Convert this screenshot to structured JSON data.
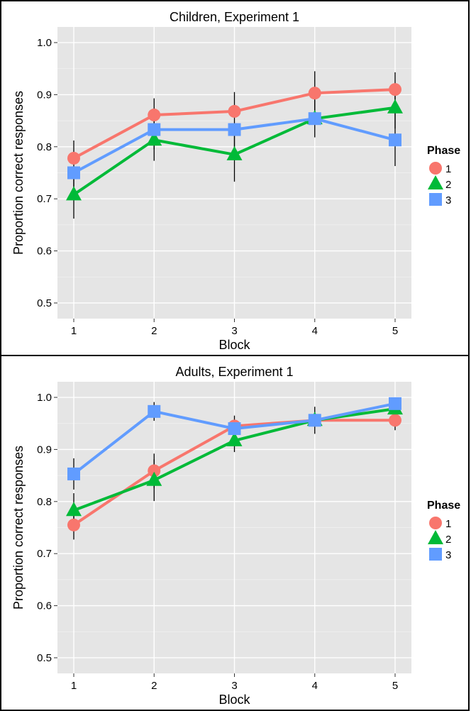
{
  "chart_data": [
    {
      "type": "line",
      "title": "Children, Experiment 1",
      "xlabel": "Block",
      "ylabel": "Proportion correct responses",
      "categories": [
        "1",
        "2",
        "3",
        "4",
        "5"
      ],
      "ylim": [
        0.47,
        1.03
      ],
      "yticks": [
        "0.5",
        "0.6",
        "0.7",
        "0.8",
        "0.9",
        "1.0"
      ],
      "grid": true,
      "legend_position": "right",
      "legend_title": "Phase",
      "series": [
        {
          "name": "1",
          "color": "#F8766D",
          "marker": "circle",
          "values": [
            0.778,
            0.861,
            0.868,
            0.903,
            0.91
          ],
          "err_lo": [
            null,
            null,
            null,
            0.861,
            null
          ],
          "err_hi": [
            null,
            null,
            null,
            0.945,
            null
          ]
        },
        {
          "name": "2",
          "color": "#00BA38",
          "marker": "triangle",
          "values": [
            0.708,
            0.813,
            0.785,
            0.854,
            0.875
          ],
          "err_lo": [
            0.662,
            0.773,
            0.733,
            0.818,
            0.835
          ],
          "err_hi": [
            0.754,
            0.853,
            0.837,
            0.89,
            0.915
          ]
        },
        {
          "name": "3",
          "color": "#619CFF",
          "marker": "square",
          "values": [
            0.75,
            0.833,
            0.833,
            0.854,
            0.813
          ],
          "err_lo": [
            0.712,
            0.795,
            0.792,
            null,
            0.763
          ],
          "err_hi": [
            0.812,
            0.893,
            0.905,
            null,
            0.943
          ]
        }
      ]
    },
    {
      "type": "line",
      "title": "Adults, Experiment 1",
      "xlabel": "Block",
      "ylabel": "Proportion correct responses",
      "categories": [
        "1",
        "2",
        "3",
        "4",
        "5"
      ],
      "ylim": [
        0.47,
        1.03
      ],
      "yticks": [
        "0.5",
        "0.6",
        "0.7",
        "0.8",
        "0.9",
        "1.0"
      ],
      "grid": true,
      "legend_position": "right",
      "legend_title": "Phase",
      "series": [
        {
          "name": "1",
          "color": "#F8766D",
          "marker": "circle",
          "values": [
            0.755,
            0.859,
            0.945,
            0.956,
            0.956
          ],
          "err_lo": [
            0.727,
            0.826,
            0.925,
            null,
            0.937
          ],
          "err_hi": [
            0.783,
            0.892,
            0.965,
            null,
            0.975
          ]
        },
        {
          "name": "2",
          "color": "#00BA38",
          "marker": "triangle",
          "values": [
            0.783,
            0.841,
            0.917,
            0.956,
            0.978
          ],
          "err_lo": [
            0.75,
            0.801,
            0.895,
            0.93,
            0.968
          ],
          "err_hi": [
            0.816,
            0.881,
            0.939,
            0.982,
            0.988
          ]
        },
        {
          "name": "3",
          "color": "#619CFF",
          "marker": "square",
          "values": [
            0.853,
            0.973,
            0.94,
            0.956,
            0.988
          ],
          "err_lo": [
            0.823,
            0.955,
            null,
            null,
            null
          ],
          "err_hi": [
            0.883,
            0.991,
            null,
            null,
            null
          ]
        }
      ]
    }
  ]
}
